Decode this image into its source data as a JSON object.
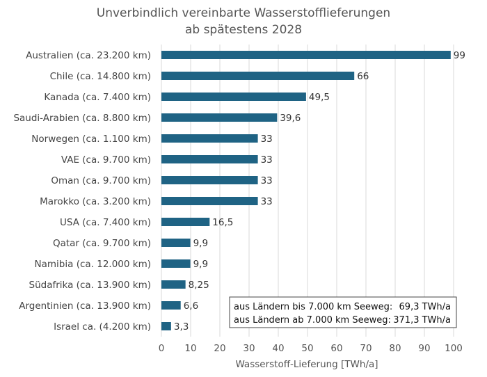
{
  "chart_data": {
    "type": "bar",
    "orientation": "horizontal",
    "title": "Unverbindlich vereinbarte Wasserstofflieferungen",
    "subtitle": "ab spätestens 2028",
    "xlabel": "Wasserstoff-Lieferung [TWh/a]",
    "ylabel": "",
    "xlim": [
      0,
      100
    ],
    "xticks": [
      0,
      10,
      20,
      30,
      40,
      50,
      60,
      70,
      80,
      90,
      100
    ],
    "grid": true,
    "categories": [
      "Australien (ca. 23.200 km)",
      "Chile (ca. 14.800 km)",
      "Kanada (ca. 7.400 km)",
      "Saudi-Arabien (ca. 8.800 km)",
      "Norwegen (ca. 1.100 km)",
      "VAE (ca. 9.700 km)",
      "Oman (ca. 9.700 km)",
      "Marokko (ca. 3.200 km)",
      "USA (ca. 7.400 km)",
      "Qatar (ca. 9.700 km)",
      "Namibia (ca. 12.000 km)",
      "Südafrika (ca. 13.900 km)",
      "Argentinien (ca. 13.900 km)",
      "Israel ca. (4.200 km)"
    ],
    "values": [
      99,
      66,
      49.5,
      39.6,
      33,
      33,
      33,
      33,
      16.5,
      9.9,
      9.9,
      8.25,
      6.6,
      3.3
    ],
    "value_labels": [
      "99",
      "66",
      "49,5",
      "39,6",
      "33",
      "33",
      "33",
      "33",
      "16,5",
      "9,9",
      "9,9",
      "8,25",
      "6,6",
      "3,3"
    ],
    "bar_color": "#1f6384",
    "grid_color": "#d9d9d9",
    "annotation": {
      "lines": [
        {
          "label": "aus Ländern bis 7.000 km Seeweg:",
          "value": "69,3 TWh/a"
        },
        {
          "label": "aus Ländern ab 7.000 km Seeweg:",
          "value": "371,3 TWh/a"
        }
      ]
    }
  }
}
